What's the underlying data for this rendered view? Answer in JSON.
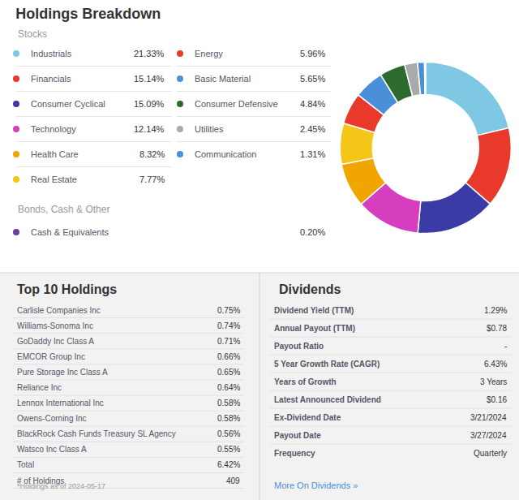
{
  "chart_data": [
    {
      "type": "pie",
      "title": "Holdings Breakdown",
      "categories": [
        "Industrials",
        "Financials",
        "Consumer Cyclical",
        "Technology",
        "Health Care",
        "Real Estate",
        "Energy",
        "Basic Material",
        "Consumer Defensive",
        "Utilities",
        "Communication",
        "Cash & Equivalents"
      ],
      "values": [
        21.33,
        15.14,
        15.09,
        12.14,
        8.32,
        7.77,
        5.96,
        5.65,
        4.84,
        2.45,
        1.31,
        0.2
      ],
      "value_labels": [
        "21.33%",
        "15.14%",
        "15.09%",
        "12.14%",
        "8.32%",
        "7.77%",
        "5.96%",
        "5.65%",
        "4.84%",
        "2.45%",
        "1.31%",
        "0.20%"
      ],
      "colors": [
        "#7ec8e3",
        "#e8392a",
        "#3b3ba8",
        "#d63dbf",
        "#f0a500",
        "#f5c518",
        "#e8392a",
        "#4a90d9",
        "#2d6a2d",
        "#aaaaaa",
        "#4a90d9",
        "#6b3fa0"
      ],
      "annotations": [
        "Stocks",
        "Bonds, Cash & Other"
      ]
    },
    {
      "type": "table",
      "title": "Top 10 Holdings",
      "categories": [
        "Carlisle Companies Inc",
        "Williams-Sonoma Inc",
        "GoDaddy Inc Class A",
        "EMCOR Group Inc",
        "Pure Storage Inc Class A",
        "Reliance Inc",
        "Lennox International Inc",
        "Owens-Corning Inc",
        "BlackRock Cash Funds Treasury SL Agency",
        "Watsco Inc Class A",
        "Total",
        "# of Holdings"
      ],
      "value_labels": [
        "0.75%",
        "0.74%",
        "0.71%",
        "0.66%",
        "0.65%",
        "0.64%",
        "0.58%",
        "0.58%",
        "0.56%",
        "0.55%",
        "6.42%",
        "409"
      ],
      "annotations": [
        "*Holdings as of 2024-05-17"
      ]
    },
    {
      "type": "table",
      "title": "Dividends",
      "categories": [
        "Dividend Yield (TTM)",
        "Annual Payout (TTM)",
        "Payout Ratio",
        "5 Year Growth Rate (CAGR)",
        "Years of Growth",
        "Latest Announced Dividend",
        "Ex-Dividend Date",
        "Payout Date",
        "Frequency"
      ],
      "value_labels": [
        "1.29%",
        "$0.78",
        "-",
        "6.43%",
        "3 Years",
        "$0.16",
        "3/21/2024",
        "3/27/2024",
        "Quarterly"
      ],
      "annotations": [
        {
          "text": "More On Dividends »",
          "color": "#4a90d9"
        }
      ]
    }
  ]
}
